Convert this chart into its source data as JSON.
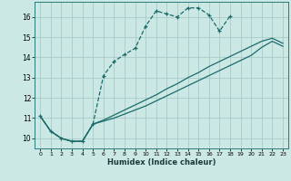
{
  "xlabel": "Humidex (Indice chaleur)",
  "background_color": "#cce8e5",
  "grid_color": "#a8ccc9",
  "line_color": "#1a6b6a",
  "xlim": [
    -0.5,
    23.5
  ],
  "ylim": [
    9.5,
    16.75
  ],
  "yticks": [
    10,
    11,
    12,
    13,
    14,
    15,
    16
  ],
  "xticks": [
    0,
    1,
    2,
    3,
    4,
    5,
    6,
    7,
    8,
    9,
    10,
    11,
    12,
    13,
    14,
    15,
    16,
    17,
    18,
    19,
    20,
    21,
    22,
    23
  ],
  "line1_x": [
    0,
    1,
    2,
    3,
    4,
    5,
    6,
    7,
    8,
    9,
    10,
    11,
    12,
    13,
    14,
    15,
    16,
    17,
    18
  ],
  "line1_y": [
    11.1,
    10.35,
    10.0,
    9.85,
    9.85,
    10.7,
    13.1,
    13.8,
    14.15,
    14.45,
    15.55,
    16.3,
    16.15,
    16.0,
    16.45,
    16.45,
    16.1,
    15.3,
    16.05
  ],
  "line2_x": [
    0,
    1,
    2,
    3,
    4,
    5,
    6,
    7,
    8,
    9,
    10,
    11,
    12,
    13,
    14,
    15,
    16,
    17,
    18,
    19,
    20,
    21,
    22,
    23
  ],
  "line2_y": [
    11.1,
    10.35,
    10.0,
    9.85,
    9.85,
    10.7,
    10.85,
    11.0,
    11.2,
    11.4,
    11.6,
    11.85,
    12.1,
    12.35,
    12.6,
    12.85,
    13.1,
    13.35,
    13.6,
    13.85,
    14.1,
    14.5,
    14.8,
    14.55
  ],
  "line3_x": [
    0,
    1,
    2,
    3,
    4,
    5,
    6,
    7,
    8,
    9,
    10,
    11,
    12,
    13,
    14,
    15,
    16,
    17,
    18,
    19,
    20,
    21,
    22,
    23
  ],
  "line3_y": [
    11.1,
    10.35,
    10.0,
    9.85,
    9.85,
    10.7,
    10.9,
    11.15,
    11.4,
    11.65,
    11.9,
    12.15,
    12.45,
    12.7,
    13.0,
    13.25,
    13.55,
    13.8,
    14.05,
    14.3,
    14.55,
    14.8,
    14.95,
    14.7
  ]
}
